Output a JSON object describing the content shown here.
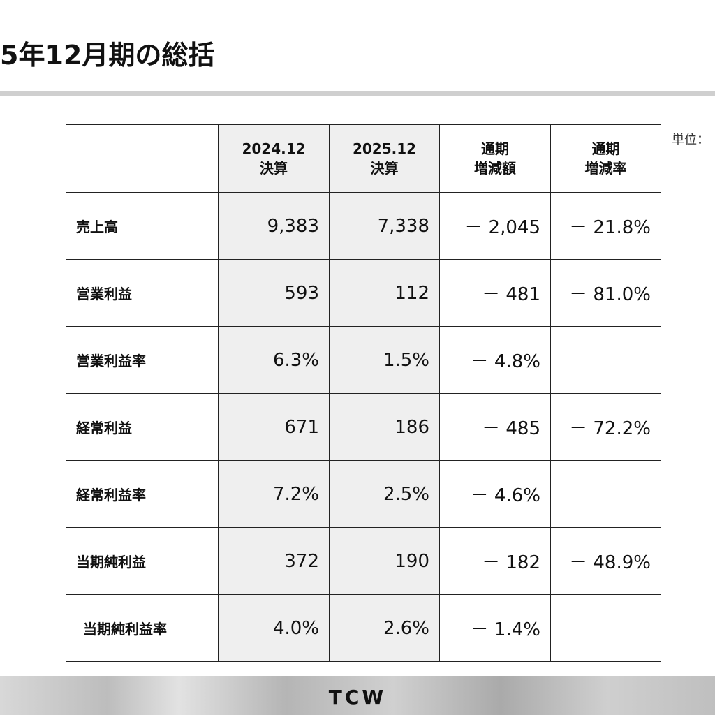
{
  "header": {
    "title": "5年12月期の総括",
    "unit": "単位："
  },
  "table": {
    "columns": [
      [
        "2024.12",
        "決算"
      ],
      [
        "2025.12",
        "決算"
      ],
      [
        "通期",
        "増減額"
      ],
      [
        "通期",
        "増減率"
      ]
    ],
    "rows": [
      [
        "売上高",
        "9,383",
        "7,338",
        "－ 2,045",
        "－ 21.8%"
      ],
      [
        "営業利益",
        "593",
        "112",
        "－ 481",
        "－ 81.0%"
      ],
      [
        "営業利益率",
        "6.3%",
        "1.5%",
        "－ 4.8%"
      ],
      [
        "経常利益",
        "671",
        "186",
        "－ 485",
        "－ 72.2%"
      ],
      [
        "経常利益率",
        "7.2%",
        "2.5%",
        "－ 4.6%"
      ],
      [
        "当期純利益",
        "372",
        "190",
        "－ 182",
        "－ 48.9%"
      ],
      [
        "当期純利益率",
        "4.0%",
        "2.6%",
        "－ 1.4%"
      ]
    ]
  },
  "footer": {
    "logo": "TCW"
  }
}
